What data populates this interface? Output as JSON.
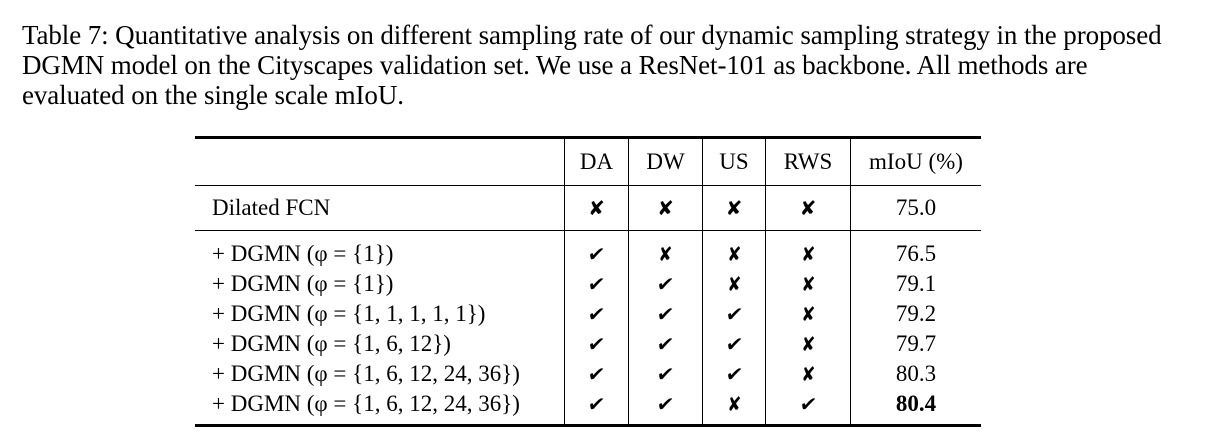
{
  "caption": "Table 7: Quantitative analysis on different sampling rate of our dynamic sampling strategy in the proposed DGMN model on the Cityscapes validation set. We use a ResNet-101 as backbone. All methods are evaluated on the single scale mIoU.",
  "table": {
    "headers": [
      "",
      "DA",
      "DW",
      "US",
      "RWS",
      "mIoU (%)"
    ],
    "symbols": {
      "check": "✔",
      "cross": "✘"
    },
    "baseline": {
      "method": "Dilated FCN",
      "DA": "✘",
      "DW": "✘",
      "US": "✘",
      "RWS": "✘",
      "miou": "75.0"
    },
    "rows": [
      {
        "method": "+ DGMN (φ = {1})",
        "DA": "✔",
        "DW": "✘",
        "US": "✘",
        "RWS": "✘",
        "miou": "76.5",
        "bold": false
      },
      {
        "method": "+ DGMN (φ = {1})",
        "DA": "✔",
        "DW": "✔",
        "US": "✘",
        "RWS": "✘",
        "miou": "79.1",
        "bold": false
      },
      {
        "method": "+ DGMN (φ = {1, 1, 1, 1, 1})",
        "DA": "✔",
        "DW": "✔",
        "US": "✔",
        "RWS": "✘",
        "miou": "79.2",
        "bold": false
      },
      {
        "method": "+ DGMN (φ = {1, 6, 12})",
        "DA": "✔",
        "DW": "✔",
        "US": "✔",
        "RWS": "✘",
        "miou": "79.7",
        "bold": false
      },
      {
        "method": "+ DGMN (φ = {1, 6, 12, 24, 36})",
        "DA": "✔",
        "DW": "✔",
        "US": "✔",
        "RWS": "✘",
        "miou": "80.3",
        "bold": false
      },
      {
        "method": "+ DGMN (φ = {1, 6, 12, 24, 36})",
        "DA": "✔",
        "DW": "✔",
        "US": "✘",
        "RWS": "✔",
        "miou": "80.4",
        "bold": true
      }
    ]
  }
}
